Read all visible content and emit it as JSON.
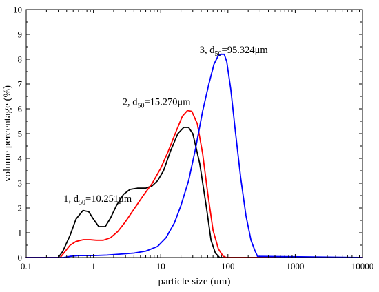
{
  "chart_data": {
    "type": "line",
    "title": "",
    "xlabel": "particle size (um)",
    "ylabel": "volume percentage (%)",
    "xscale": "log",
    "xlim": [
      0.1,
      10000
    ],
    "ylim": [
      0,
      10
    ],
    "xticks": [
      "0.1",
      "1",
      "10",
      "100",
      "1000",
      "10000"
    ],
    "yticks": [
      "0",
      "1",
      "2",
      "3",
      "4",
      "5",
      "6",
      "7",
      "8",
      "9",
      "10"
    ],
    "grid": false,
    "legend": "none",
    "series": [
      {
        "color": "#000000",
        "x": [
          0.1,
          0.3,
          0.35,
          0.45,
          0.55,
          0.7,
          0.85,
          1.0,
          1.2,
          1.5,
          1.8,
          2.2,
          2.8,
          3.5,
          4.5,
          6.0,
          7.5,
          9.0,
          11.0,
          14.0,
          18.0,
          22.0,
          26.0,
          30.0,
          38.0,
          48.0,
          56.0,
          65.0,
          75.0,
          10000
        ],
        "y": [
          0,
          0,
          0.25,
          0.9,
          1.55,
          1.9,
          1.85,
          1.55,
          1.25,
          1.25,
          1.6,
          2.1,
          2.55,
          2.75,
          2.8,
          2.8,
          2.9,
          3.1,
          3.5,
          4.3,
          5.0,
          5.25,
          5.25,
          5.0,
          3.8,
          2.0,
          0.7,
          0.18,
          0,
          0
        ]
      },
      {
        "color": "#ff0000",
        "x": [
          0.1,
          0.32,
          0.38,
          0.45,
          0.55,
          0.7,
          0.9,
          1.1,
          1.4,
          1.8,
          2.3,
          3.0,
          4.0,
          5.5,
          7.5,
          10.0,
          13.0,
          17.0,
          21.0,
          25.0,
          29.0,
          35.0,
          42.0,
          50.0,
          60.0,
          72.0,
          85.0,
          95.0,
          10000
        ],
        "y": [
          0,
          0,
          0.25,
          0.5,
          0.65,
          0.72,
          0.72,
          0.7,
          0.7,
          0.8,
          1.05,
          1.45,
          1.95,
          2.5,
          3.0,
          3.6,
          4.3,
          5.1,
          5.7,
          5.93,
          5.9,
          5.4,
          4.2,
          2.6,
          1.1,
          0.35,
          0.05,
          0,
          0
        ]
      },
      {
        "color": "#0000ff",
        "x": [
          0.1,
          0.36,
          0.45,
          0.6,
          1.0,
          1.6,
          2.5,
          4.0,
          6.0,
          9.0,
          12.0,
          16.0,
          20.0,
          26.0,
          33.0,
          42.0,
          52.0,
          62.0,
          72.0,
          80.0,
          88.0,
          96.0,
          110.0,
          130.0,
          155.0,
          185.0,
          220.0,
          250.0,
          275.0,
          10000
        ],
        "y": [
          0,
          0,
          0.05,
          0.08,
          0.08,
          0.1,
          0.14,
          0.18,
          0.26,
          0.45,
          0.8,
          1.4,
          2.1,
          3.1,
          4.4,
          5.9,
          7.0,
          7.8,
          8.15,
          8.2,
          8.2,
          7.9,
          6.8,
          5.0,
          3.2,
          1.7,
          0.7,
          0.3,
          0.05,
          0
        ]
      }
    ],
    "annotations": [
      {
        "number": "1, d",
        "sub": "50",
        "value": "=10.251μm",
        "x": 0.36,
        "y": 2.25
      },
      {
        "number": "2, d",
        "sub": "50",
        "value": "=15.270μm",
        "x": 2.7,
        "y": 6.15
      },
      {
        "number": "3, d",
        "sub": "50",
        "value": "=95.324μm",
        "x": 38.0,
        "y": 8.25
      }
    ]
  }
}
